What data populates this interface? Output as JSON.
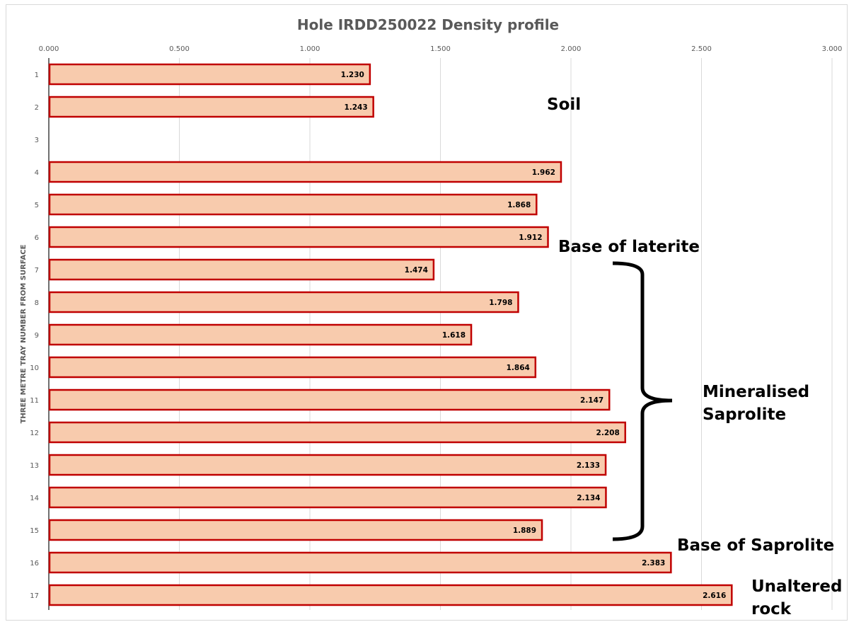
{
  "chart_data": {
    "type": "bar",
    "orientation": "horizontal",
    "title": "Hole IRDD250022 Density profile",
    "xlabel": "",
    "ylabel": "THREE METRE TRAY NUMBER FROM SURFACE",
    "xlim": [
      0,
      3
    ],
    "x_ticks": [
      "0.000",
      "0.500",
      "1.000",
      "1.500",
      "2.000",
      "2.500",
      "3.000"
    ],
    "categories": [
      "1",
      "2",
      "3",
      "4",
      "5",
      "6",
      "7",
      "8",
      "9",
      "10",
      "11",
      "12",
      "13",
      "14",
      "15",
      "16",
      "17"
    ],
    "values": [
      1.23,
      1.243,
      null,
      1.962,
      1.868,
      1.912,
      1.474,
      1.798,
      1.618,
      1.864,
      2.147,
      2.208,
      2.133,
      2.134,
      1.889,
      2.383,
      2.616
    ],
    "value_labels": [
      "1.230",
      "1.243",
      "",
      "1.962",
      "1.868",
      "1.912",
      "1.474",
      "1.798",
      "1.618",
      "1.864",
      "2.147",
      "2.208",
      "2.133",
      "2.134",
      "1.889",
      "2.383",
      "2.616"
    ],
    "grid": true,
    "bar_fill": "#f8cbad",
    "bar_stroke": "#c00000",
    "annotations": [
      {
        "text": "Soil"
      },
      {
        "text": "Base of laterite"
      },
      {
        "text": "Mineralised\nSaprolite"
      },
      {
        "text": "Base of Saprolite"
      },
      {
        "text": "Unaltered\nrock"
      }
    ],
    "bracket": {
      "from_category": "7",
      "to_category": "15"
    }
  }
}
